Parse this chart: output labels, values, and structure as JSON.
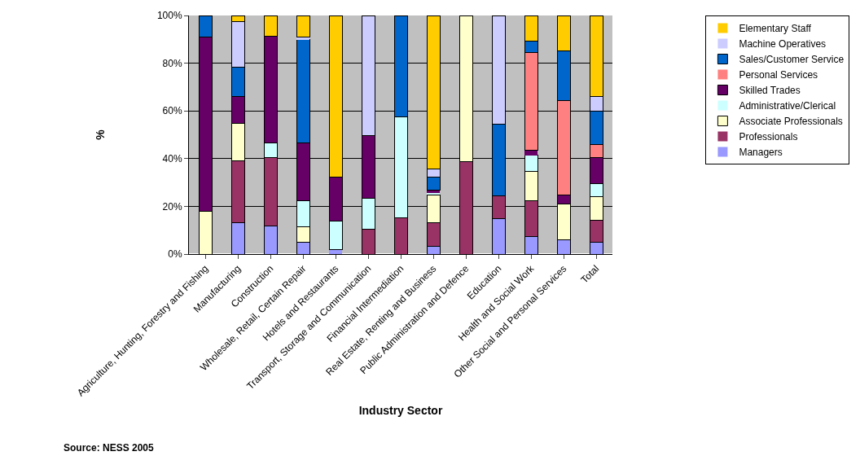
{
  "chart_data": {
    "type": "bar",
    "stacked": true,
    "xlabel": "Industry Sector",
    "ylabel": "%",
    "categories": [
      "Agriculture, Hunting, Forestry and Fishing",
      "Manufacturing",
      "Construction",
      "Wholesale, Retail, Certain Repair",
      "Hotels and Restaurants",
      "Transport, Storage and Communication",
      "Financial Intermediation",
      "Real Estate, Renting and Business",
      "Public Administration and Defence",
      "Education",
      "Health and Social Work",
      "Other Social and Personal Services",
      "Total"
    ],
    "series": [
      {
        "name": "Managers",
        "color": "#9999ff",
        "values": [
          0,
          13.2,
          11.8,
          5.1,
          1.9,
          0,
          0,
          3.4,
          0,
          15.0,
          7.4,
          6.0,
          4.8
        ]
      },
      {
        "name": "Professionals",
        "color": "#993366",
        "values": [
          0,
          25.8,
          28.5,
          0,
          0,
          10.5,
          15.2,
          9.9,
          38.6,
          9.5,
          15.1,
          0,
          9.4
        ]
      },
      {
        "name": "Associate Professionals",
        "color": "#ffffcc",
        "values": [
          18.0,
          15.7,
          0,
          6.5,
          0,
          0,
          0,
          11.5,
          61.4,
          0,
          12.2,
          14.9,
          9.8
        ]
      },
      {
        "name": "Administrative/Clerical",
        "color": "#ccffff",
        "values": [
          0,
          0,
          6.3,
          10.9,
          12.0,
          12.9,
          42.3,
          0.9,
          0,
          0,
          6.7,
          0,
          5.4
        ]
      },
      {
        "name": "Skilled Trades",
        "color": "#660066",
        "values": [
          72.8,
          11.5,
          44.7,
          24.0,
          18.5,
          26.1,
          0,
          1.1,
          0,
          0,
          2.0,
          4.0,
          11.1
        ]
      },
      {
        "name": "Personal Services",
        "color": "#ff8080",
        "values": [
          0,
          0,
          0,
          0,
          0,
          0,
          0,
          0,
          0,
          0,
          41.2,
          39.3,
          5.4
        ]
      },
      {
        "name": "Sales/Customer Service",
        "color": "#0066cc",
        "values": [
          9.2,
          12.1,
          0,
          43.4,
          0,
          0,
          42.5,
          5.6,
          0,
          30.1,
          4.7,
          20.9,
          14.1
        ]
      },
      {
        "name": "Machine Operatives",
        "color": "#ccccff",
        "values": [
          0,
          19.1,
          0,
          1.1,
          0,
          50.5,
          0,
          3.4,
          0,
          45.4,
          0,
          0,
          6.2
        ]
      },
      {
        "name": "Elementary Staff",
        "color": "#ffcc00",
        "values": [
          0,
          2.6,
          8.7,
          9.0,
          67.6,
          0,
          0,
          64.2,
          0,
          0,
          10.7,
          14.9,
          33.8
        ]
      }
    ],
    "ylim": [
      0,
      100
    ],
    "yticks": [
      {
        "value": 0,
        "label": "0%"
      },
      {
        "value": 20,
        "label": "20%"
      },
      {
        "value": 40,
        "label": "40%"
      },
      {
        "value": 60,
        "label": "60%"
      },
      {
        "value": 80,
        "label": "80%"
      },
      {
        "value": 100,
        "label": "100%"
      }
    ],
    "grid": "y",
    "legend": "top right",
    "annotations": [
      "Source: NESS 2005"
    ]
  }
}
